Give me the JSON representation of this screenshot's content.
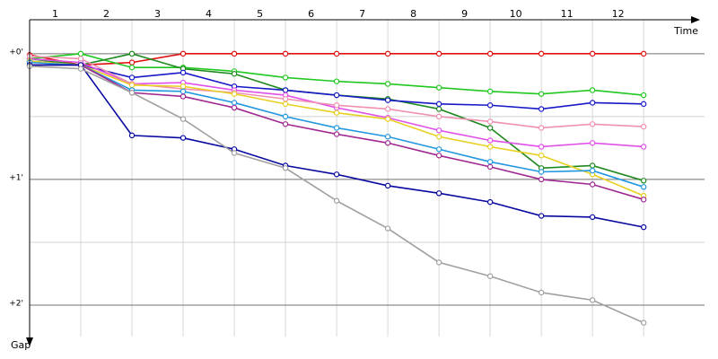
{
  "chart_data": {
    "type": "line",
    "x_label": "Time",
    "y_label": "Gap",
    "lap_labels": [
      "1",
      "2",
      "3",
      "4",
      "5",
      "6",
      "7",
      "8",
      "9",
      "10",
      "11",
      "12"
    ],
    "x": [
      0,
      1,
      2,
      3,
      4,
      5,
      6,
      7,
      8,
      9,
      10,
      11,
      12
    ],
    "xlim": [
      0,
      13.4
    ],
    "ylim": [
      -0.27,
      2.25
    ],
    "yticks": [
      {
        "value": 0,
        "label": "+0'"
      },
      {
        "value": 1,
        "label": "+1'"
      },
      {
        "value": 2,
        "label": "+2'"
      }
    ],
    "minor_yticks": [
      0.5,
      1.5
    ],
    "grid": true,
    "series": [
      {
        "color": "#e01010",
        "values": [
          0.01,
          0.09,
          0.07,
          0,
          0,
          0,
          0,
          0,
          0,
          0,
          0,
          0,
          0
        ]
      },
      {
        "color": "#20c820",
        "values": [
          0.04,
          0,
          0.11,
          0.11,
          0.14,
          0.19,
          0.22,
          0.24,
          0.27,
          0.3,
          0.32,
          0.29,
          0.33
        ]
      },
      {
        "color": "#208a20",
        "values": [
          0.04,
          0.09,
          0,
          0.12,
          0.16,
          0.29,
          0.33,
          0.36,
          0.44,
          0.59,
          0.91,
          0.89,
          1.01
        ]
      },
      {
        "color": "#1818c8",
        "values": [
          0.06,
          0.09,
          0.19,
          0.15,
          0.26,
          0.29,
          0.33,
          0.37,
          0.4,
          0.41,
          0.44,
          0.39,
          0.4
        ]
      },
      {
        "color": "#e050e8",
        "values": [
          0.04,
          0.07,
          0.24,
          0.23,
          0.29,
          0.33,
          0.43,
          0.51,
          0.61,
          0.69,
          0.74,
          0.71,
          0.74
        ]
      },
      {
        "color": "#f090b0",
        "values": [
          0.02,
          0.04,
          0.24,
          0.28,
          0.31,
          0.36,
          0.41,
          0.44,
          0.5,
          0.54,
          0.59,
          0.56,
          0.58
        ]
      },
      {
        "color": "#e8d020",
        "values": [
          0.06,
          0.09,
          0.25,
          0.26,
          0.32,
          0.4,
          0.47,
          0.52,
          0.66,
          0.74,
          0.81,
          0.96,
          1.13
        ]
      },
      {
        "color": "#2098e0",
        "values": [
          0.07,
          0.09,
          0.29,
          0.3,
          0.39,
          0.5,
          0.59,
          0.66,
          0.76,
          0.86,
          0.94,
          0.93,
          1.06
        ]
      },
      {
        "color": "#a02890",
        "values": [
          0.09,
          0.09,
          0.31,
          0.34,
          0.43,
          0.56,
          0.64,
          0.71,
          0.81,
          0.9,
          1.0,
          1.04,
          1.16
        ]
      },
      {
        "color": "#0808a0",
        "values": [
          0.09,
          0.09,
          0.65,
          0.67,
          0.76,
          0.89,
          0.96,
          1.05,
          1.11,
          1.18,
          1.29,
          1.3,
          1.38
        ]
      },
      {
        "color": "#a0a0a0",
        "values": [
          0.1,
          0.12,
          0.31,
          0.52,
          0.79,
          0.91,
          1.17,
          1.39,
          1.66,
          1.77,
          1.9,
          1.96,
          2.14
        ]
      }
    ]
  }
}
